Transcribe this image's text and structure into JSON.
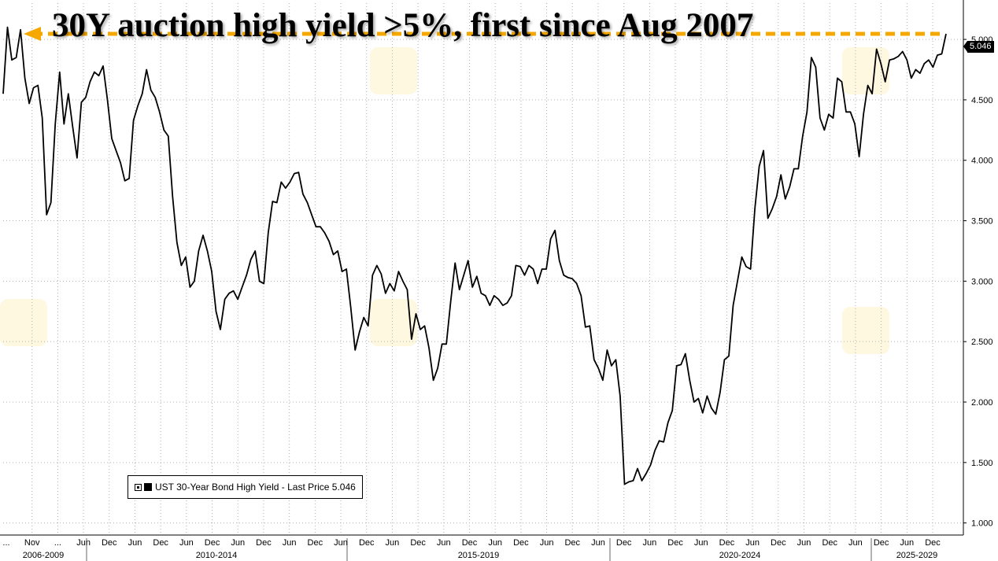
{
  "title": "30Y auction high yield >5%, first since Aug 2007",
  "legend": {
    "label": "UST 30-Year Bond High Yield - Last Price 5.046"
  },
  "last_value_tag": "5.046",
  "colors": {
    "line": "#000000",
    "grid": "#b0b0b0",
    "arrow": "#f5a800"
  },
  "chart_data": {
    "type": "line",
    "ylim": [
      0.9,
      5.3
    ],
    "y_ticks": [
      1.0,
      1.5,
      2.0,
      2.5,
      3.0,
      3.5,
      4.0,
      4.5,
      5.0
    ],
    "y_tick_labels": [
      "1.000",
      "1.500",
      "2.000",
      "2.500",
      "3.000",
      "3.500",
      "4.000",
      "4.500",
      "5.000"
    ],
    "x_tick_labels": [
      "...",
      "Nov",
      "...",
      "Jun",
      "Dec",
      "Jun",
      "Dec",
      "Jun",
      "Dec",
      "Jun",
      "Dec",
      "Jun",
      "Dec",
      "Jun",
      "Dec",
      "Jun",
      "Dec",
      "Jun",
      "Dec",
      "Jun",
      "Dec",
      "Jun",
      "Dec",
      "Jun",
      "Dec",
      "Jun",
      "Dec",
      "Jun",
      "Dec",
      "Jun",
      "Dec",
      "Jun",
      "Dec",
      "Jun",
      "Dec",
      "Jun",
      "Dec"
    ],
    "period_labels": [
      "2006-2009",
      "2010-2014",
      "2015-2019",
      "2020-2024",
      "2025-2029"
    ],
    "annotation": "30Y auction high yield >5%, first since Aug 2007",
    "grid": true,
    "series": [
      {
        "name": "UST 30-Year Bond High Yield",
        "values": [
          4.55,
          5.1,
          4.83,
          4.85,
          5.08,
          4.68,
          4.47,
          4.6,
          4.62,
          4.35,
          3.55,
          3.65,
          4.3,
          4.73,
          4.3,
          4.55,
          4.28,
          4.02,
          4.48,
          4.52,
          4.65,
          4.73,
          4.7,
          4.78,
          4.5,
          4.18,
          4.08,
          3.98,
          3.83,
          3.85,
          4.33,
          4.45,
          4.55,
          4.75,
          4.58,
          4.52,
          4.4,
          4.25,
          4.2,
          3.7,
          3.32,
          3.13,
          3.2,
          2.95,
          3.0,
          3.25,
          3.38,
          3.25,
          3.08,
          2.75,
          2.6,
          2.85,
          2.9,
          2.92,
          2.85,
          2.95,
          3.05,
          3.18,
          3.25,
          3.0,
          2.98,
          3.4,
          3.66,
          3.65,
          3.82,
          3.77,
          3.82,
          3.89,
          3.9,
          3.72,
          3.65,
          3.55,
          3.45,
          3.45,
          3.4,
          3.33,
          3.22,
          3.25,
          3.08,
          3.1,
          2.78,
          2.43,
          2.58,
          2.7,
          2.63,
          3.05,
          3.13,
          3.06,
          2.9,
          2.98,
          2.92,
          3.08,
          3.0,
          2.93,
          2.52,
          2.73,
          2.6,
          2.63,
          2.45,
          2.18,
          2.28,
          2.48,
          2.48,
          2.83,
          3.15,
          2.93,
          3.05,
          3.17,
          2.95,
          3.04,
          2.9,
          2.88,
          2.8,
          2.88,
          2.85,
          2.8,
          2.82,
          2.88,
          3.13,
          3.12,
          3.05,
          3.13,
          3.1,
          2.98,
          3.1,
          3.1,
          3.35,
          3.42,
          3.17,
          3.05,
          3.03,
          3.02,
          2.98,
          2.88,
          2.62,
          2.63,
          2.35,
          2.28,
          2.18,
          2.43,
          2.3,
          2.35,
          2.05,
          1.32,
          1.34,
          1.35,
          1.45,
          1.35,
          1.41,
          1.48,
          1.6,
          1.68,
          1.67,
          1.83,
          1.93,
          2.3,
          2.31,
          2.4,
          2.18,
          2.0,
          2.03,
          1.91,
          2.05,
          1.95,
          1.9,
          2.08,
          2.35,
          2.38,
          2.8,
          3.0,
          3.2,
          3.12,
          3.1,
          3.6,
          3.95,
          4.08,
          3.52,
          3.6,
          3.7,
          3.88,
          3.68,
          3.78,
          3.93,
          3.93,
          4.2,
          4.4,
          4.85,
          4.77,
          4.35,
          4.25,
          4.38,
          4.35,
          4.68,
          4.65,
          4.4,
          4.4,
          4.3,
          4.03,
          4.38,
          4.62,
          4.55,
          4.92,
          4.8,
          4.65,
          4.83,
          4.84,
          4.86,
          4.9,
          4.83,
          4.68,
          4.75,
          4.72,
          4.8,
          4.83,
          4.77,
          4.87,
          4.88,
          5.046
        ]
      }
    ]
  }
}
